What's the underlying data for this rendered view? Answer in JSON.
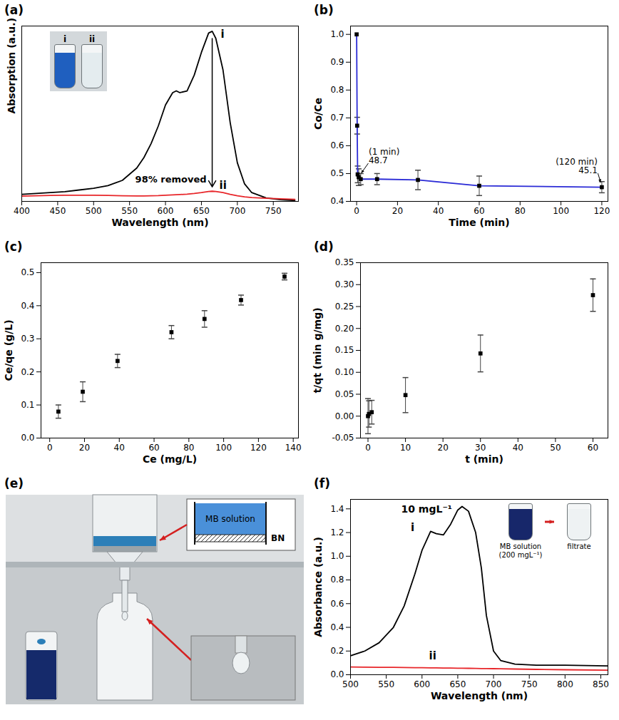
{
  "chart_data": [
    {
      "type": "line",
      "panel": "(a)",
      "x_label": "Wavelength (nm)",
      "y_label": "Absorption (a.u.)",
      "xlim": [
        400,
        785
      ],
      "xticks": [
        400,
        450,
        500,
        550,
        600,
        650,
        700,
        750
      ],
      "ylim": [
        0,
        1
      ],
      "tick_labels": "x",
      "x": [
        400,
        420,
        440,
        460,
        480,
        500,
        520,
        540,
        560,
        570,
        580,
        590,
        600,
        610,
        615,
        620,
        630,
        640,
        650,
        660,
        665,
        670,
        680,
        690,
        700,
        710,
        720,
        740,
        760,
        780
      ],
      "series": [
        {
          "name": "i",
          "color": "#000000",
          "values": [
            0.04,
            0.045,
            0.05,
            0.055,
            0.065,
            0.075,
            0.09,
            0.12,
            0.19,
            0.25,
            0.33,
            0.43,
            0.55,
            0.62,
            0.63,
            0.62,
            0.63,
            0.72,
            0.85,
            0.96,
            0.97,
            0.93,
            0.75,
            0.45,
            0.22,
            0.1,
            0.05,
            0.02,
            0.01,
            0.005
          ]
        },
        {
          "name": "ii",
          "color": "#e8262a",
          "values": [
            0.03,
            0.032,
            0.034,
            0.035,
            0.035,
            0.035,
            0.034,
            0.032,
            0.031,
            0.031,
            0.032,
            0.033,
            0.035,
            0.037,
            0.038,
            0.039,
            0.041,
            0.045,
            0.05,
            0.056,
            0.058,
            0.056,
            0.05,
            0.04,
            0.032,
            0.026,
            0.022,
            0.018,
            0.015,
            0.012
          ]
        }
      ],
      "annotations": [
        {
          "text": "98% removed"
        }
      ],
      "inset": {
        "labels": [
          "i",
          "ii"
        ]
      }
    },
    {
      "type": "line",
      "panel": "(b)",
      "x_label": "Time (min)",
      "y_label": "Co/Ce",
      "xlim": [
        -3,
        123
      ],
      "xticks": [
        0,
        20,
        40,
        60,
        80,
        100,
        120
      ],
      "ylim": [
        0.4,
        1.03
      ],
      "yticks": [
        0.4,
        0.5,
        0.6,
        0.7,
        0.8,
        0.9,
        {
          "value": 1,
          "label": "1.0"
        }
      ],
      "x": [
        0,
        0.25,
        0.5,
        1,
        2,
        10,
        30,
        60,
        120
      ],
      "values": [
        1.0,
        0.672,
        0.497,
        0.487,
        0.48,
        0.48,
        0.477,
        0.456,
        0.451
      ],
      "y_error": [
        0,
        0.03,
        0.03,
        0.03,
        0.02,
        0.02,
        0.035,
        0.035,
        0.02
      ],
      "color": "#2b2bd6",
      "marker": "square",
      "annotations": [
        {
          "x": 1,
          "text": [
            "(1 min)",
            "48.7"
          ]
        },
        {
          "x": 120,
          "text": [
            "(120 min)",
            "45.1"
          ]
        }
      ]
    },
    {
      "type": "scatter",
      "panel": "(c)",
      "x_label": "Ce (mg/L)",
      "y_label": "Ce/qe (g/L)",
      "xlim": [
        -5,
        143
      ],
      "xticks": [
        0,
        20,
        40,
        60,
        80,
        100,
        120,
        140
      ],
      "ylim": [
        0,
        0.53
      ],
      "yticks": [
        {
          "value": 0,
          "label": "0.0"
        },
        0.1,
        0.2,
        0.3,
        0.4,
        0.5
      ],
      "x": [
        5,
        19,
        39,
        70,
        89,
        110,
        135
      ],
      "values": [
        0.08,
        0.14,
        0.233,
        0.32,
        0.36,
        0.417,
        0.488
      ],
      "y_error": [
        0.02,
        0.03,
        0.02,
        0.02,
        0.025,
        0.015,
        0.01
      ],
      "color": "#000000",
      "marker": "square"
    },
    {
      "type": "scatter",
      "panel": "(d)",
      "x_label": "t (min)",
      "y_label": "t/qt (min g/mg)",
      "xlim": [
        -2,
        64
      ],
      "xticks": [
        0,
        10,
        20,
        30,
        40,
        50,
        60
      ],
      "ylim": [
        -0.05,
        0.35
      ],
      "yticks": [
        -0.05,
        {
          "value": 0,
          "label": "0.00"
        },
        0.05,
        {
          "value": 0.1,
          "label": "0.10"
        },
        0.15,
        {
          "value": 0.2,
          "label": "0.20"
        },
        0.25,
        {
          "value": 0.3,
          "label": "0.30"
        },
        0.35
      ],
      "x": [
        0,
        0.25,
        1,
        10,
        30,
        60
      ],
      "values": [
        0.0,
        0.005,
        0.009,
        0.048,
        0.143,
        0.276
      ],
      "y_error": [
        0.04,
        0.03,
        0.027,
        0.04,
        0.042,
        0.037
      ],
      "color": "#000000",
      "marker": "square"
    },
    {
      "type": "photo",
      "panel": "(e)",
      "labels": [
        "MB solution",
        "BN"
      ]
    },
    {
      "type": "line",
      "panel": "(f)",
      "x_label": "Wavelength (nm)",
      "y_label": "Absorbance (a.u.)",
      "xlim": [
        500,
        860
      ],
      "xticks": [
        500,
        550,
        600,
        650,
        700,
        750,
        800,
        850
      ],
      "ylim": [
        0,
        1.48
      ],
      "yticks": [
        {
          "value": 0,
          "label": "0.0"
        },
        0.2,
        0.4,
        0.6,
        0.8,
        {
          "value": 1,
          "label": "1.0"
        },
        1.2,
        1.4
      ],
      "x": [
        500,
        520,
        540,
        560,
        575,
        590,
        600,
        612,
        620,
        630,
        640,
        650,
        656,
        665,
        675,
        683,
        690,
        700,
        710,
        730,
        760,
        800,
        860
      ],
      "series": [
        {
          "name": "i",
          "color": "#000000",
          "values": [
            0.16,
            0.2,
            0.27,
            0.4,
            0.58,
            0.85,
            1.05,
            1.21,
            1.19,
            1.18,
            1.27,
            1.39,
            1.42,
            1.38,
            1.2,
            0.9,
            0.5,
            0.2,
            0.12,
            0.09,
            0.08,
            0.08,
            0.075
          ]
        },
        {
          "name": "ii",
          "color": "#e8262a",
          "values": [
            0.065,
            0.064,
            0.063,
            0.062,
            0.061,
            0.06,
            0.059,
            0.058,
            0.058,
            0.057,
            0.056,
            0.055,
            0.055,
            0.054,
            0.053,
            0.052,
            0.052,
            0.051,
            0.05,
            0.048,
            0.045,
            0.042,
            0.038
          ]
        }
      ],
      "annotations": [
        {
          "text": "10 mgL⁻¹"
        }
      ],
      "inset": {
        "labels": [
          "MB solution (200 mgL⁻¹)",
          "filtrate"
        ]
      }
    }
  ]
}
